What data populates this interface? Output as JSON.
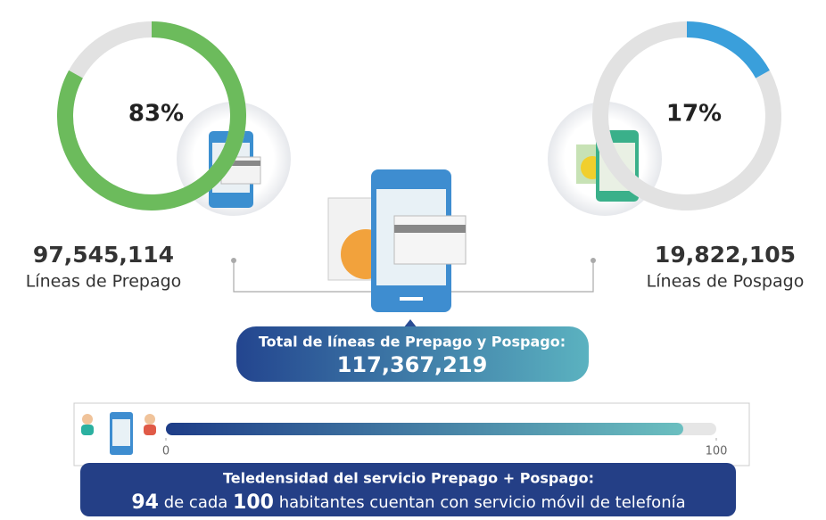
{
  "gauges": [
    {
      "value": 83,
      "value_label": "83%",
      "count": "97,545,114",
      "name": "Líneas de Prepago",
      "color": "#6cbb5c"
    },
    {
      "value": 17,
      "value_label": "17%",
      "count": "19,822,105",
      "name": "Líneas de Pospago",
      "color": "#3a9fdb"
    }
  ],
  "total": {
    "label": "Total de líneas de Prepago y Pospago:",
    "count": "117,367,219"
  },
  "teledensity": {
    "title": "Teledensidad del servicio Prepago + Pospago:",
    "value": 94,
    "xlim": [
      0,
      100
    ],
    "xticks": [
      0,
      100
    ],
    "base": 100,
    "text_middle": "de cada",
    "text_end": "habitantes cuentan con servicio móvil de telefonía"
  }
}
